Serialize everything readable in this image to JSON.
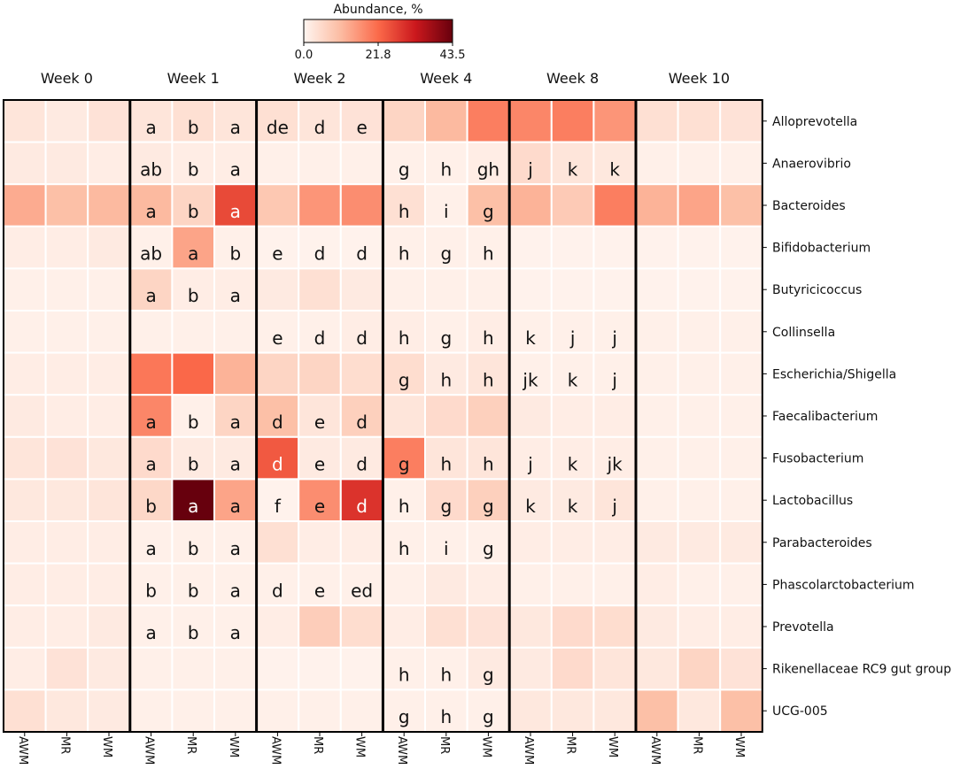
{
  "chart_data": {
    "type": "heatmap",
    "title": "",
    "colorbar": {
      "title": "Abundance, %",
      "min": 0.0,
      "max": 43.5,
      "ticks": [
        "0.0",
        "21.8",
        "43.5"
      ],
      "colors": [
        "#fff5f0",
        "#fcbba1",
        "#fb6a4a",
        "#cb181d",
        "#67000d"
      ]
    },
    "weeks": [
      "Week 0",
      "Week 1",
      "Week 2",
      "Week 4",
      "Week 8",
      "Week 10"
    ],
    "groups": [
      "AWM",
      "MR",
      "WM"
    ],
    "rows": [
      "Alloprevotella",
      "Anaerovibrio",
      "Bacteroides",
      "Bifidobacterium",
      "Butyricicoccus",
      "Collinsella",
      "Escherichia/Shigella",
      "Faecalibacterium",
      "Fusobacterium",
      "Lactobacillus",
      "Parabacteroides",
      "Phascolarctobacterium",
      "Prevotella",
      "Rikenellaceae RC9 gut group",
      "UCG-005"
    ],
    "values": [
      [
        3,
        2,
        3.5,
        3,
        4,
        3,
        4,
        3,
        3.5,
        6,
        11,
        19,
        18,
        19,
        16,
        4,
        4,
        3.5
      ],
      [
        2,
        2,
        1.5,
        2,
        1.5,
        1.5,
        1,
        1,
        1,
        1,
        1,
        1.5,
        5,
        3,
        2.5,
        1,
        1,
        1
      ],
      [
        13,
        10,
        11,
        11,
        6,
        26,
        8.5,
        16,
        17,
        4,
        1,
        10,
        12,
        8,
        19,
        12,
        14,
        10
      ],
      [
        1.5,
        1.5,
        2,
        1,
        14,
        1,
        0.5,
        0.5,
        0.5,
        1,
        1,
        1,
        0.5,
        0.5,
        0.5,
        0.5,
        0.5,
        0.5
      ],
      [
        1,
        1,
        1,
        6,
        1.5,
        1.5,
        2,
        4,
        2,
        1,
        1,
        1,
        0.5,
        0.5,
        0.5,
        0.5,
        0.5,
        0.5
      ],
      [
        1,
        1,
        1,
        1,
        1,
        1,
        1,
        1,
        1.5,
        1.5,
        1,
        1.5,
        1,
        1,
        1,
        1,
        1,
        1
      ],
      [
        1.5,
        1.5,
        1.5,
        20,
        22,
        12,
        6,
        6,
        4.5,
        4.5,
        2,
        3,
        1,
        1,
        1,
        1,
        1,
        1
      ],
      [
        2,
        1.5,
        1.5,
        18,
        1,
        6,
        10,
        3,
        7,
        3,
        5,
        7,
        2,
        1.5,
        1.5,
        1,
        1,
        1
      ],
      [
        3,
        3.5,
        2.5,
        5,
        2,
        2,
        24,
        2,
        2,
        19,
        3,
        3,
        1.5,
        1.5,
        1.5,
        1,
        1,
        1
      ],
      [
        2.5,
        2.5,
        3,
        5.5,
        43.5,
        14,
        0.5,
        17,
        29,
        1,
        5,
        7,
        2,
        2,
        3,
        1,
        1,
        1
      ],
      [
        1.5,
        1.5,
        1.5,
        1,
        1,
        1,
        4,
        1.5,
        1.5,
        1,
        1,
        1,
        1.5,
        1.5,
        1.5,
        2,
        2,
        2
      ],
      [
        1.5,
        1.5,
        1.5,
        1,
        1,
        1,
        1,
        1,
        1,
        1,
        2,
        1.5,
        1,
        1,
        1,
        1.5,
        1,
        1
      ],
      [
        1.5,
        1.5,
        2,
        1,
        1,
        1,
        1.5,
        7.5,
        4.5,
        1.5,
        4,
        3.5,
        2.5,
        5,
        4.5,
        2,
        1.5,
        1.5
      ],
      [
        1.5,
        3.5,
        2,
        1,
        1,
        1,
        0.5,
        0.5,
        0.5,
        1,
        1,
        2,
        2,
        5,
        3,
        2.5,
        6,
        3.5
      ],
      [
        4,
        2.5,
        2,
        1,
        1,
        1,
        1,
        1,
        1,
        1,
        1,
        1,
        2.5,
        2.5,
        2.5,
        10,
        2.5,
        10
      ]
    ],
    "annotations": [
      [
        "",
        "",
        "",
        "a",
        "b",
        "a",
        "de",
        "d",
        "e",
        "",
        "",
        "",
        "",
        "",
        "",
        "",
        "",
        ""
      ],
      [
        "",
        "",
        "",
        "ab",
        "b",
        "a",
        "",
        "",
        "",
        "g",
        "h",
        "gh",
        "j",
        "k",
        "k",
        "",
        "",
        ""
      ],
      [
        "",
        "",
        "",
        "a",
        "b",
        "a",
        "",
        "",
        "",
        "h",
        "i",
        "g",
        "",
        "",
        "",
        "",
        "",
        ""
      ],
      [
        "",
        "",
        "",
        "ab",
        "a",
        "b",
        "e",
        "d",
        "d",
        "h",
        "g",
        "h",
        "",
        "",
        "",
        "",
        "",
        ""
      ],
      [
        "",
        "",
        "",
        "a",
        "b",
        "a",
        "",
        "",
        "",
        "",
        "",
        "",
        "",
        "",
        "",
        "",
        "",
        ""
      ],
      [
        "",
        "",
        "",
        "",
        "",
        "",
        "e",
        "d",
        "d",
        "h",
        "g",
        "h",
        "k",
        "j",
        "j",
        "",
        "",
        ""
      ],
      [
        "",
        "",
        "",
        "",
        "",
        "",
        "",
        "",
        "",
        "g",
        "h",
        "h",
        "jk",
        "k",
        "j",
        "",
        "",
        ""
      ],
      [
        "",
        "",
        "",
        "a",
        "b",
        "a",
        "d",
        "e",
        "d",
        "",
        "",
        "",
        "",
        "",
        "",
        "",
        "",
        ""
      ],
      [
        "",
        "",
        "",
        "a",
        "b",
        "a",
        "d",
        "e",
        "d",
        "g",
        "h",
        "h",
        "j",
        "k",
        "jk",
        "",
        "",
        ""
      ],
      [
        "",
        "",
        "",
        "b",
        "a",
        "a",
        "f",
        "e",
        "d",
        "h",
        "g",
        "g",
        "k",
        "k",
        "j",
        "",
        "",
        ""
      ],
      [
        "",
        "",
        "",
        "a",
        "b",
        "a",
        "",
        "",
        "",
        "h",
        "i",
        "g",
        "",
        "",
        "",
        "",
        "",
        ""
      ],
      [
        "",
        "",
        "",
        "b",
        "b",
        "a",
        "d",
        "e",
        "ed",
        "",
        "",
        "",
        "",
        "",
        "",
        "",
        "",
        ""
      ],
      [
        "",
        "",
        "",
        "a",
        "b",
        "a",
        "",
        "",
        "",
        "",
        "",
        "",
        "",
        "",
        "",
        "",
        "",
        ""
      ],
      [
        "",
        "",
        "",
        "",
        "",
        "",
        "",
        "",
        "",
        "h",
        "h",
        "g",
        "",
        "",
        "",
        "",
        "",
        ""
      ],
      [
        "",
        "",
        "",
        "",
        "",
        "",
        "",
        "",
        "",
        "g",
        "h",
        "g",
        "",
        "",
        "",
        "",
        "",
        ""
      ]
    ],
    "xlabel": "",
    "ylabel": ""
  }
}
